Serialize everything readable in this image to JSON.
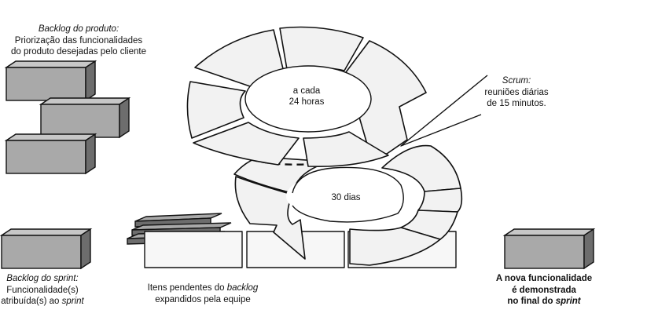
{
  "product_backlog": {
    "title": "Backlog do produto:",
    "line1": "Priorização das funcionalidades",
    "line2": "do produto desejadas pelo cliente"
  },
  "scrum": {
    "title": "Scrum:",
    "line1": "reuniões diárias",
    "line2": "de 15 minutos."
  },
  "daily_cycle": {
    "line1": "a cada",
    "line2": "24 horas"
  },
  "sprint_cycle": {
    "label": "30 dias"
  },
  "sprint_backlog": {
    "title": "Backlog do sprint:",
    "line1": "Funcionalidade(s)",
    "line2_prefix": "atribuída(s) ao ",
    "line2_italic": "sprint"
  },
  "pending_items": {
    "line1_prefix": "Itens pendentes do ",
    "line1_italic": "backlog",
    "line2": "expandidos pela equipe"
  },
  "new_feature": {
    "line1": "A nova funcionalidade",
    "line2": "é demonstrada",
    "line3_prefix": "no final do ",
    "line3_italic": "sprint"
  }
}
